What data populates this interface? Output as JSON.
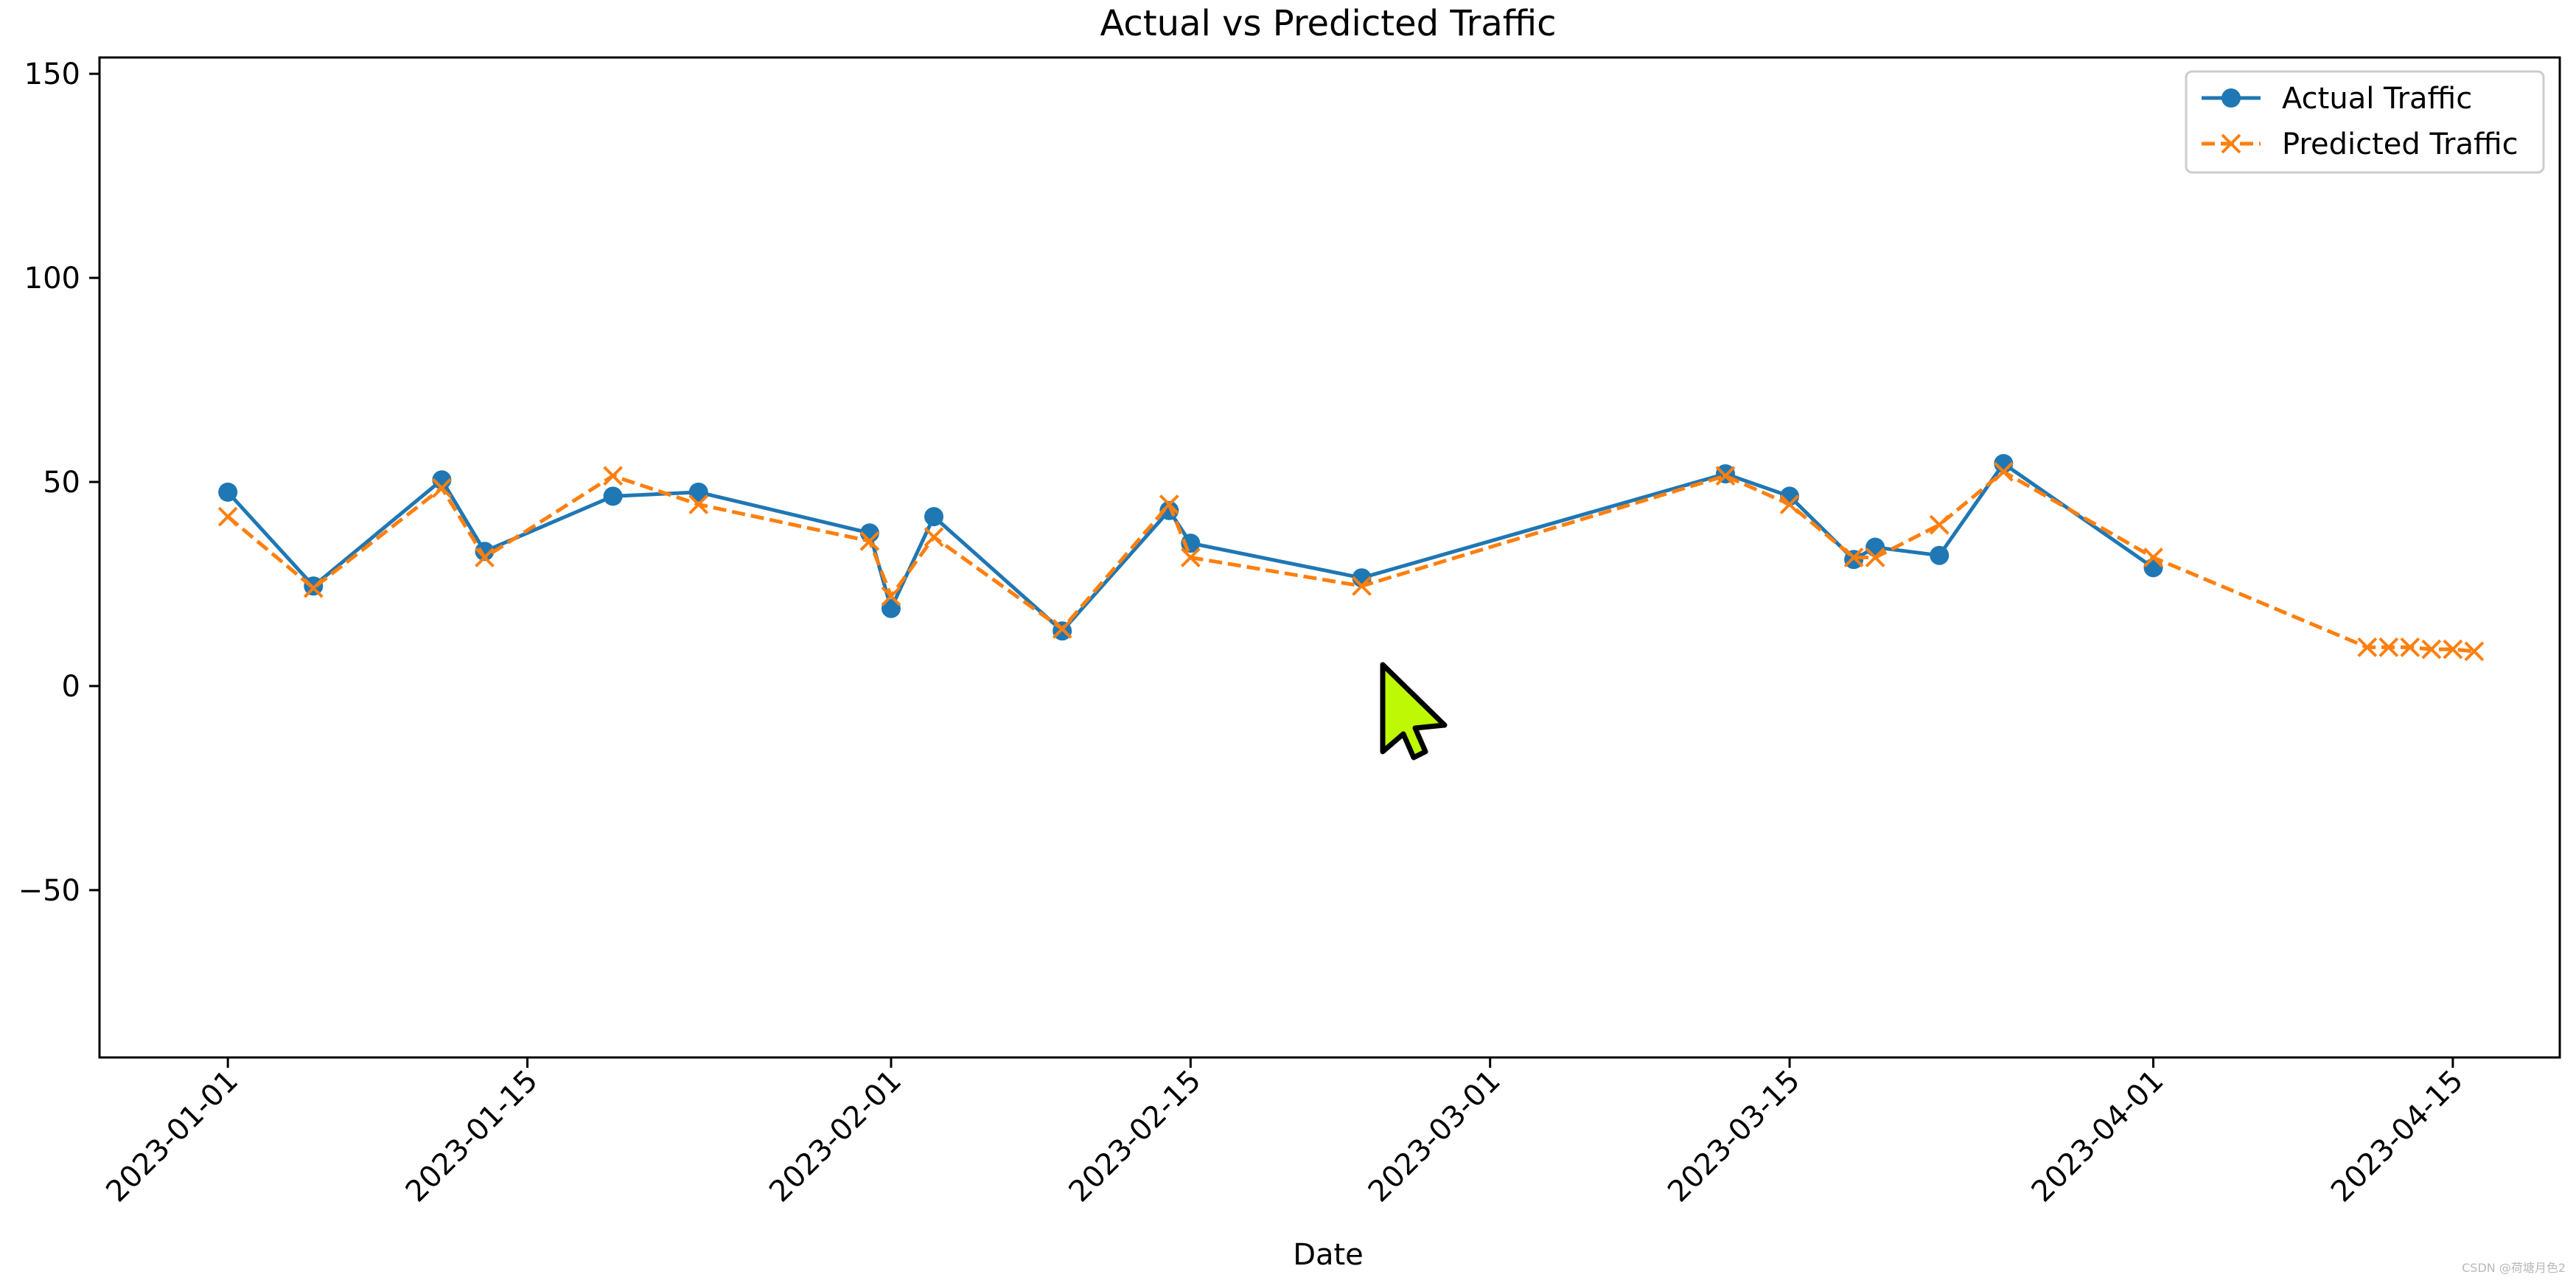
{
  "chart_data": {
    "type": "line",
    "title": "Actual vs Predicted Traffic",
    "xlabel": "Date",
    "ylabel": "",
    "xlim": [
      "2022-12-26",
      "2023-04-20"
    ],
    "ylim": [
      -91,
      154
    ],
    "x_ticks": [
      "2023-01-01",
      "2023-01-15",
      "2023-02-01",
      "2023-02-15",
      "2023-03-01",
      "2023-03-15",
      "2023-04-01",
      "2023-04-15"
    ],
    "y_ticks": [
      -50,
      0,
      50,
      100,
      150
    ],
    "y_tick_labels": [
      "−50",
      "0",
      "50",
      "100",
      "150"
    ],
    "grid": false,
    "legend_position": "top-right",
    "series": [
      {
        "name": "Actual Traffic",
        "color": "#1f77b4",
        "linestyle": "solid",
        "marker": "circle",
        "points": [
          {
            "x": "2023-01-01",
            "y": 47.5
          },
          {
            "x": "2023-01-05",
            "y": 24.5
          },
          {
            "x": "2023-01-11",
            "y": 50.5
          },
          {
            "x": "2023-01-13",
            "y": 33
          },
          {
            "x": "2023-01-19",
            "y": 46.5
          },
          {
            "x": "2023-01-23",
            "y": 47.5
          },
          {
            "x": "2023-01-31",
            "y": 37.5
          },
          {
            "x": "2023-02-01",
            "y": 19
          },
          {
            "x": "2023-02-03",
            "y": 41.5
          },
          {
            "x": "2023-02-09",
            "y": 13.5
          },
          {
            "x": "2023-02-14",
            "y": 43
          },
          {
            "x": "2023-02-15",
            "y": 35
          },
          {
            "x": "2023-02-23",
            "y": 26.5
          },
          {
            "x": "2023-03-12",
            "y": 52
          },
          {
            "x": "2023-03-15",
            "y": 46.5
          },
          {
            "x": "2023-03-18",
            "y": 31
          },
          {
            "x": "2023-03-19",
            "y": 34
          },
          {
            "x": "2023-03-22",
            "y": 32
          },
          {
            "x": "2023-03-25",
            "y": 54.5
          },
          {
            "x": "2023-04-01",
            "y": 29
          }
        ]
      },
      {
        "name": "Predicted Traffic",
        "color": "#ff7f0e",
        "linestyle": "dashed",
        "marker": "x",
        "points": [
          {
            "x": "2023-01-01",
            "y": 41.5
          },
          {
            "x": "2023-01-05",
            "y": 24
          },
          {
            "x": "2023-01-11",
            "y": 48.5
          },
          {
            "x": "2023-01-13",
            "y": 31.5
          },
          {
            "x": "2023-01-19",
            "y": 51.5
          },
          {
            "x": "2023-01-23",
            "y": 44.5
          },
          {
            "x": "2023-01-31",
            "y": 35.5
          },
          {
            "x": "2023-02-01",
            "y": 22
          },
          {
            "x": "2023-02-03",
            "y": 36.5
          },
          {
            "x": "2023-02-09",
            "y": 14
          },
          {
            "x": "2023-02-14",
            "y": 44.5
          },
          {
            "x": "2023-02-15",
            "y": 31.5
          },
          {
            "x": "2023-02-23",
            "y": 24.5
          },
          {
            "x": "2023-03-12",
            "y": 51.5
          },
          {
            "x": "2023-03-15",
            "y": 44.5
          },
          {
            "x": "2023-03-18",
            "y": 31.5
          },
          {
            "x": "2023-03-19",
            "y": 31.5
          },
          {
            "x": "2023-03-22",
            "y": 39.5
          },
          {
            "x": "2023-03-25",
            "y": 52.5
          },
          {
            "x": "2023-04-01",
            "y": 31.5
          },
          {
            "x": "2023-04-11",
            "y": 9.5
          },
          {
            "x": "2023-04-12",
            "y": 9.5
          },
          {
            "x": "2023-04-13",
            "y": 9.5
          },
          {
            "x": "2023-04-14",
            "y": 9
          },
          {
            "x": "2023-04-15",
            "y": 9
          },
          {
            "x": "2023-04-16",
            "y": 8.5
          }
        ]
      }
    ]
  },
  "overlay": {
    "cursor_icon": "mouse-pointer-arrow-icon",
    "cursor_color": "#bef805",
    "watermark": "CSDN @荷塘月色2"
  }
}
